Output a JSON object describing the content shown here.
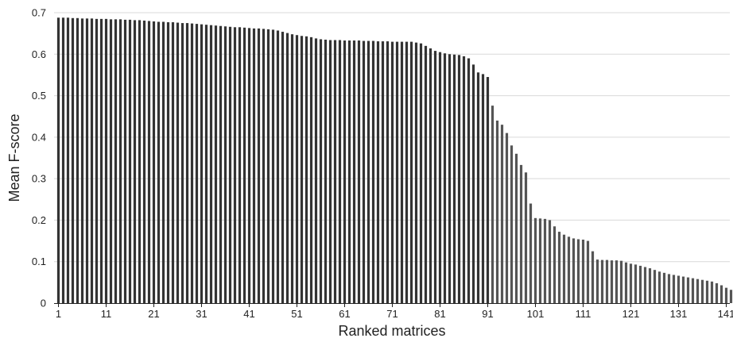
{
  "chart_data": {
    "type": "bar",
    "title": "",
    "xlabel": "Ranked matrices",
    "ylabel": "Mean F-score",
    "ylim": [
      0,
      0.7
    ],
    "yticks": [
      0,
      0.1,
      0.2,
      0.3,
      0.4,
      0.5,
      0.6,
      0.7
    ],
    "ytick_labels": [
      "0",
      "0.1",
      "0.2",
      "0.3",
      "0.4",
      "0.5",
      "0.6",
      "0.7"
    ],
    "xlim": [
      1,
      142
    ],
    "xticks": [
      1,
      11,
      21,
      31,
      41,
      51,
      61,
      71,
      81,
      91,
      101,
      111,
      121,
      131,
      141
    ],
    "xtick_labels": [
      "1",
      "11",
      "21",
      "31",
      "41",
      "51",
      "61",
      "71",
      "81",
      "91",
      "101",
      "111",
      "121",
      "131",
      "141"
    ],
    "grid": true,
    "colors": {
      "bars_top": "#333333",
      "bars_rest": "#555555",
      "grid": "#d9d9d9"
    },
    "x": [
      1,
      2,
      3,
      4,
      5,
      6,
      7,
      8,
      9,
      10,
      11,
      12,
      13,
      14,
      15,
      16,
      17,
      18,
      19,
      20,
      21,
      22,
      23,
      24,
      25,
      26,
      27,
      28,
      29,
      30,
      31,
      32,
      33,
      34,
      35,
      36,
      37,
      38,
      39,
      40,
      41,
      42,
      43,
      44,
      45,
      46,
      47,
      48,
      49,
      50,
      51,
      52,
      53,
      54,
      55,
      56,
      57,
      58,
      59,
      60,
      61,
      62,
      63,
      64,
      65,
      66,
      67,
      68,
      69,
      70,
      71,
      72,
      73,
      74,
      75,
      76,
      77,
      78,
      79,
      80,
      81,
      82,
      83,
      84,
      85,
      86,
      87,
      88,
      89,
      90,
      91,
      92,
      93,
      94,
      95,
      96,
      97,
      98,
      99,
      100,
      101,
      102,
      103,
      104,
      105,
      106,
      107,
      108,
      109,
      110,
      111,
      112,
      113,
      114,
      115,
      116,
      117,
      118,
      119,
      120,
      121,
      122,
      123,
      124,
      125,
      126,
      127,
      128,
      129,
      130,
      131,
      132,
      133,
      134,
      135,
      136,
      137,
      138,
      139,
      140,
      141,
      142
    ],
    "values": [
      0.688,
      0.688,
      0.688,
      0.687,
      0.687,
      0.686,
      0.686,
      0.686,
      0.685,
      0.685,
      0.685,
      0.684,
      0.684,
      0.684,
      0.683,
      0.683,
      0.682,
      0.682,
      0.681,
      0.68,
      0.679,
      0.678,
      0.678,
      0.677,
      0.677,
      0.676,
      0.675,
      0.675,
      0.674,
      0.673,
      0.672,
      0.671,
      0.67,
      0.669,
      0.668,
      0.667,
      0.666,
      0.665,
      0.665,
      0.664,
      0.663,
      0.662,
      0.662,
      0.661,
      0.66,
      0.659,
      0.657,
      0.654,
      0.651,
      0.648,
      0.646,
      0.644,
      0.643,
      0.641,
      0.638,
      0.636,
      0.635,
      0.634,
      0.634,
      0.634,
      0.633,
      0.633,
      0.633,
      0.633,
      0.632,
      0.632,
      0.632,
      0.631,
      0.631,
      0.631,
      0.63,
      0.63,
      0.63,
      0.63,
      0.63,
      0.628,
      0.626,
      0.62,
      0.614,
      0.608,
      0.605,
      0.602,
      0.6,
      0.599,
      0.598,
      0.595,
      0.59,
      0.575,
      0.556,
      0.552,
      0.545,
      0.476,
      0.44,
      0.43,
      0.41,
      0.38,
      0.36,
      0.333,
      0.315,
      0.24,
      0.205,
      0.204,
      0.203,
      0.2,
      0.185,
      0.172,
      0.165,
      0.16,
      0.156,
      0.154,
      0.153,
      0.15,
      0.125,
      0.105,
      0.104,
      0.104,
      0.103,
      0.103,
      0.102,
      0.098,
      0.095,
      0.093,
      0.09,
      0.087,
      0.084,
      0.08,
      0.076,
      0.073,
      0.07,
      0.068,
      0.066,
      0.064,
      0.062,
      0.06,
      0.058,
      0.056,
      0.054,
      0.052,
      0.048,
      0.043,
      0.037,
      0.032
    ]
  }
}
